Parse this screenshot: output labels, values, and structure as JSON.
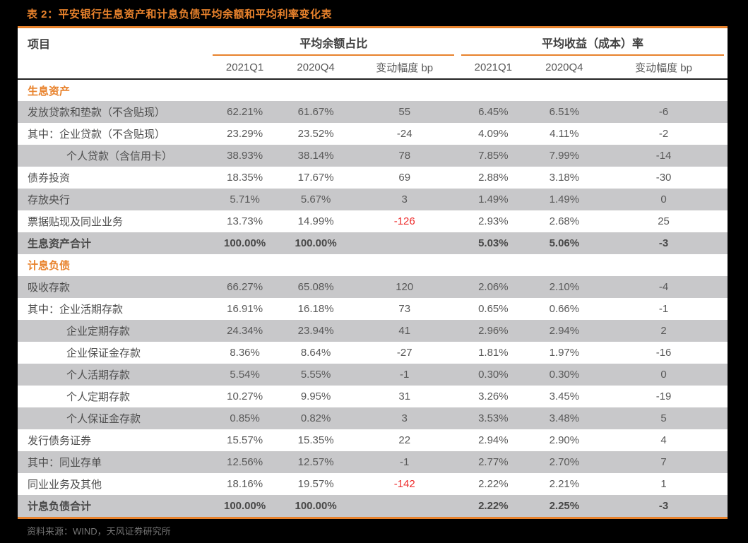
{
  "title": "表 2：平安银行生息资产和计息负债平均余额和平均利率变化表",
  "footer": "资料来源：WIND，天风证券研究所",
  "colors": {
    "accent": "#E8822C",
    "row-shade": "#C8C8CA",
    "negative-red": "#EE2C2C",
    "footer-gray": "#757575",
    "page-bg": "#000000",
    "table-bg": "#FFFFFF"
  },
  "table": {
    "item_header": "项目",
    "groups": [
      {
        "label": "平均余额占比",
        "cols": [
          "2021Q1",
          "2020Q4",
          "变动幅度 bp"
        ]
      },
      {
        "label": "平均收益（成本）率",
        "cols": [
          "2021Q1",
          "2020Q4",
          "变动幅度 bp"
        ]
      }
    ],
    "rows": [
      {
        "type": "section",
        "label": "生息资产"
      },
      {
        "type": "data",
        "shaded": true,
        "indent": false,
        "label": "发放贷款和垫款（不含贴现）",
        "values": [
          "62.21%",
          "61.67%",
          "55",
          "6.45%",
          "6.51%",
          "-6"
        ],
        "red_cols": []
      },
      {
        "type": "data",
        "shaded": false,
        "indent": false,
        "label": "其中：企业贷款（不含贴现）",
        "values": [
          "23.29%",
          "23.52%",
          "-24",
          "4.09%",
          "4.11%",
          "-2"
        ],
        "red_cols": []
      },
      {
        "type": "data",
        "shaded": true,
        "indent": true,
        "label": "个人贷款（含信用卡）",
        "values": [
          "38.93%",
          "38.14%",
          "78",
          "7.85%",
          "7.99%",
          "-14"
        ],
        "red_cols": []
      },
      {
        "type": "data",
        "shaded": false,
        "indent": false,
        "label": "债券投资",
        "values": [
          "18.35%",
          "17.67%",
          "69",
          "2.88%",
          "3.18%",
          "-30"
        ],
        "red_cols": []
      },
      {
        "type": "data",
        "shaded": true,
        "indent": false,
        "label": "存放央行",
        "values": [
          "5.71%",
          "5.67%",
          "3",
          "1.49%",
          "1.49%",
          "0"
        ],
        "red_cols": []
      },
      {
        "type": "data",
        "shaded": false,
        "indent": false,
        "label": "票据贴现及同业业务",
        "values": [
          "13.73%",
          "14.99%",
          "-126",
          "2.93%",
          "2.68%",
          "25"
        ],
        "red_cols": [
          2
        ]
      },
      {
        "type": "total",
        "shaded": true,
        "indent": false,
        "label": "生息资产合计",
        "values": [
          "100.00%",
          "100.00%",
          "",
          "5.03%",
          "5.06%",
          "-3"
        ],
        "red_cols": []
      },
      {
        "type": "section",
        "label": "计息负债"
      },
      {
        "type": "data",
        "shaded": true,
        "indent": false,
        "label": "吸收存款",
        "values": [
          "66.27%",
          "65.08%",
          "120",
          "2.06%",
          "2.10%",
          "-4"
        ],
        "red_cols": []
      },
      {
        "type": "data",
        "shaded": false,
        "indent": false,
        "label": "其中：企业活期存款",
        "values": [
          "16.91%",
          "16.18%",
          "73",
          "0.65%",
          "0.66%",
          "-1"
        ],
        "red_cols": []
      },
      {
        "type": "data",
        "shaded": true,
        "indent": true,
        "label": "企业定期存款",
        "values": [
          "24.34%",
          "23.94%",
          "41",
          "2.96%",
          "2.94%",
          "2"
        ],
        "red_cols": []
      },
      {
        "type": "data",
        "shaded": false,
        "indent": true,
        "label": "企业保证金存款",
        "values": [
          "8.36%",
          "8.64%",
          "-27",
          "1.81%",
          "1.97%",
          "-16"
        ],
        "red_cols": []
      },
      {
        "type": "data",
        "shaded": true,
        "indent": true,
        "label": "个人活期存款",
        "values": [
          "5.54%",
          "5.55%",
          "-1",
          "0.30%",
          "0.30%",
          "0"
        ],
        "red_cols": []
      },
      {
        "type": "data",
        "shaded": false,
        "indent": true,
        "label": "个人定期存款",
        "values": [
          "10.27%",
          "9.95%",
          "31",
          "3.26%",
          "3.45%",
          "-19"
        ],
        "red_cols": []
      },
      {
        "type": "data",
        "shaded": true,
        "indent": true,
        "label": "个人保证金存款",
        "values": [
          "0.85%",
          "0.82%",
          "3",
          "3.53%",
          "3.48%",
          "5"
        ],
        "red_cols": []
      },
      {
        "type": "data",
        "shaded": false,
        "indent": false,
        "label": "发行债务证券",
        "values": [
          "15.57%",
          "15.35%",
          "22",
          "2.94%",
          "2.90%",
          "4"
        ],
        "red_cols": []
      },
      {
        "type": "data",
        "shaded": true,
        "indent": false,
        "label": "其中：同业存单",
        "values": [
          "12.56%",
          "12.57%",
          "-1",
          "2.77%",
          "2.70%",
          "7"
        ],
        "red_cols": []
      },
      {
        "type": "data",
        "shaded": false,
        "indent": false,
        "label": "同业业务及其他",
        "values": [
          "18.16%",
          "19.57%",
          "-142",
          "2.22%",
          "2.21%",
          "1"
        ],
        "red_cols": [
          2
        ]
      },
      {
        "type": "total",
        "shaded": true,
        "indent": false,
        "label": "计息负债合计",
        "values": [
          "100.00%",
          "100.00%",
          "",
          "2.22%",
          "2.25%",
          "-3"
        ],
        "red_cols": []
      }
    ]
  }
}
